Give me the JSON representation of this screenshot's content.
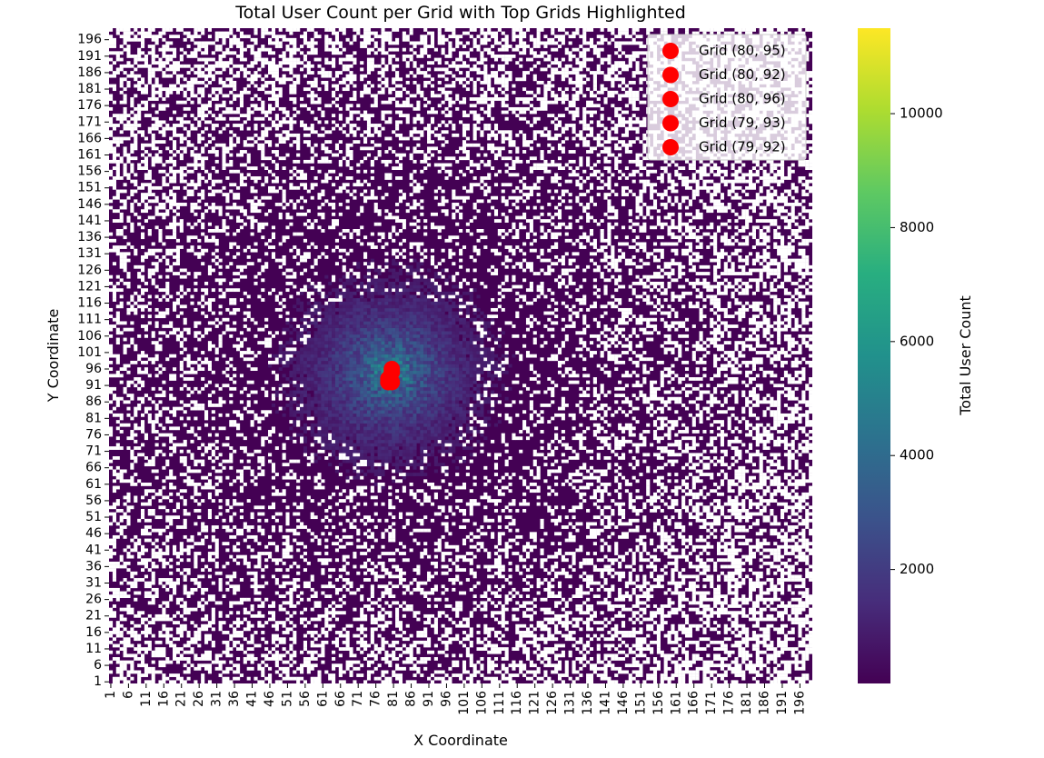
{
  "chart_data": {
    "type": "heatmap",
    "title": "Total User Count per Grid with Top Grids Highlighted",
    "xlabel": "X Coordinate",
    "ylabel": "Y Coordinate",
    "x_range": [
      1,
      199
    ],
    "y_range": [
      1,
      199
    ],
    "x_ticks": [
      1,
      6,
      11,
      16,
      21,
      26,
      31,
      36,
      41,
      46,
      51,
      56,
      61,
      66,
      71,
      76,
      81,
      86,
      91,
      96,
      101,
      106,
      111,
      116,
      121,
      126,
      131,
      136,
      141,
      146,
      151,
      156,
      161,
      166,
      171,
      176,
      181,
      186,
      191,
      196
    ],
    "y_ticks": [
      1,
      6,
      11,
      16,
      21,
      26,
      31,
      36,
      41,
      46,
      51,
      56,
      61,
      66,
      71,
      76,
      81,
      86,
      91,
      96,
      101,
      106,
      111,
      116,
      121,
      126,
      131,
      136,
      141,
      146,
      151,
      156,
      161,
      166,
      171,
      176,
      181,
      186,
      191,
      196
    ],
    "colormap": "viridis",
    "color_range": [
      0,
      11500
    ],
    "missing_color": "#ffffff",
    "marker_color": "#ff0000",
    "colorbar": {
      "label": "Total User Count",
      "ticks": [
        2000,
        4000,
        6000,
        8000,
        10000
      ]
    },
    "legend_position": "top-right",
    "top_grids": [
      {
        "label": "Grid (80, 95)",
        "x": 80,
        "y": 95
      },
      {
        "label": "Grid (80, 92)",
        "x": 80,
        "y": 92
      },
      {
        "label": "Grid (80, 96)",
        "x": 80,
        "y": 96
      },
      {
        "label": "Grid (79, 93)",
        "x": 79,
        "y": 93
      },
      {
        "label": "Grid (79, 92)",
        "x": 79,
        "y": 92
      }
    ]
  }
}
